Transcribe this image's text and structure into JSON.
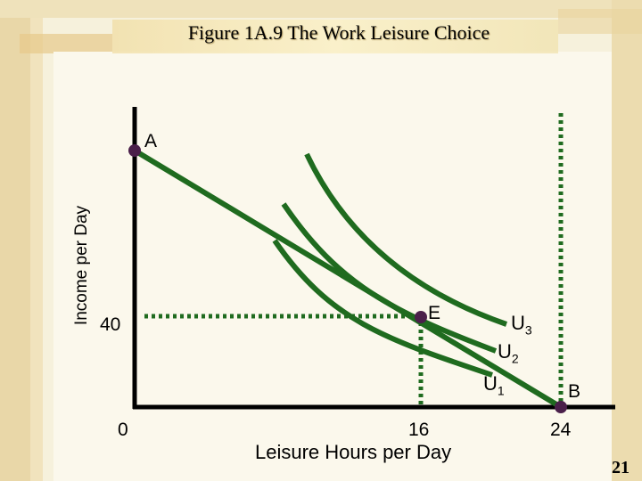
{
  "title": "Figure 1A.9 The Work Leisure Choice",
  "axes": {
    "ylabel": "Income per Day",
    "xlabel": "Leisure Hours per Day",
    "y_tick_40": "40",
    "x_tick_0": "0",
    "x_tick_16": "16",
    "x_tick_24": "24"
  },
  "points": {
    "a": "A",
    "e": "E",
    "b": "B"
  },
  "curves": {
    "u3": {
      "letter": "U",
      "index": "3"
    },
    "u2": {
      "letter": "U",
      "index": "2"
    },
    "u1": {
      "letter": "U",
      "index": "1"
    }
  },
  "slide_number": "21",
  "colors": {
    "curve": "#1f6b1f",
    "point": "#4a1f4a",
    "background": "#f6f1dc"
  }
}
